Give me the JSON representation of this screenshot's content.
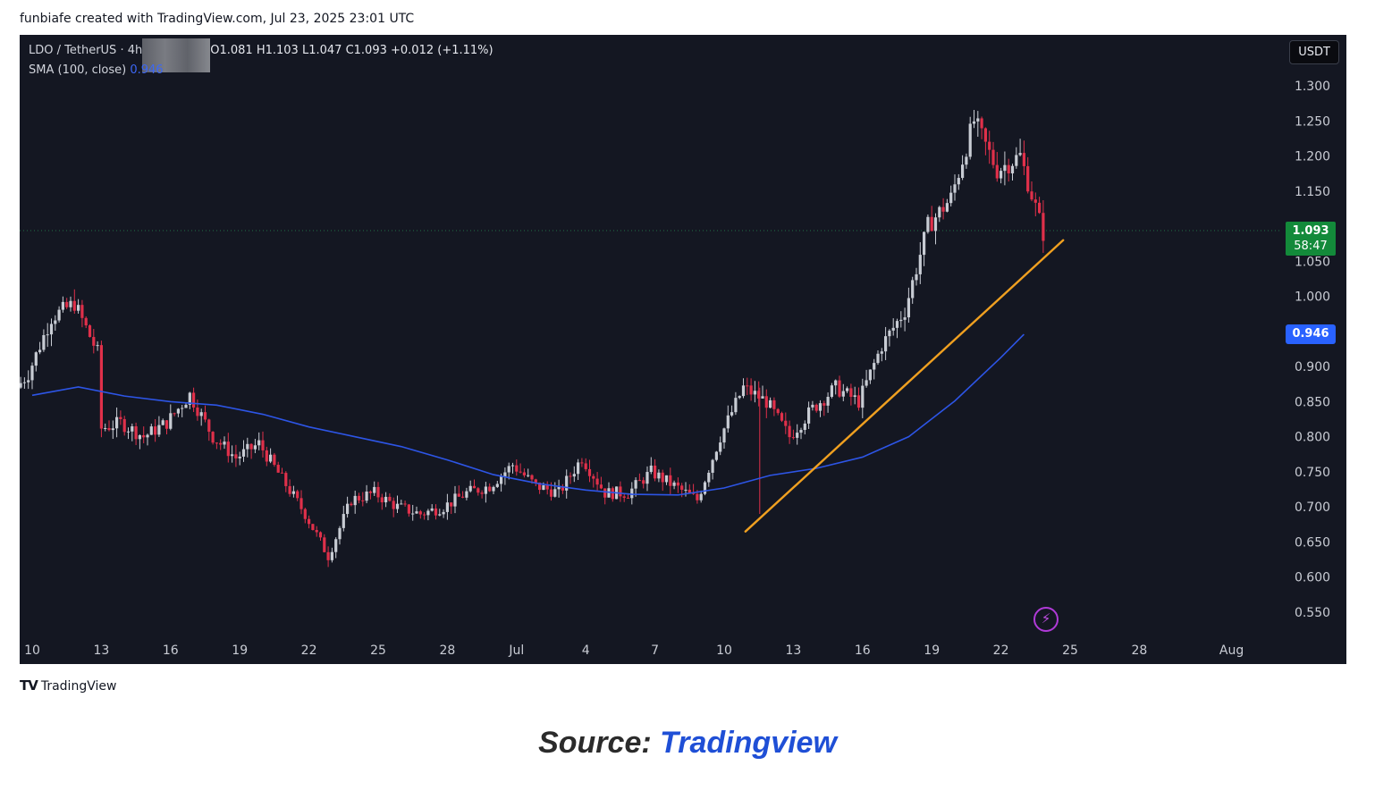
{
  "header": {
    "caption": "funbiafe created with TradingView.com, Jul 23, 2025 23:01 UTC"
  },
  "legend": {
    "symbol": "LDO / TetherUS · 4h",
    "open": "O1.081",
    "high": "H1.103",
    "low": "L1.047",
    "close": "C1.093",
    "change": "+0.012 (+1.11%)",
    "sma_label": "SMA (100, close)",
    "sma_value": "0.946"
  },
  "currency_button": "USDT",
  "price_tags": {
    "current": "1.093",
    "countdown": "58:47",
    "sma": "0.946"
  },
  "icons": {
    "alert": "lightning-bolt-icon",
    "logo": "tradingview-logo-icon"
  },
  "colors": {
    "background": "#141722",
    "up": "#c8ccd4",
    "down": "#e0304a",
    "sma": "#2d55e6",
    "trendline": "#f0a020",
    "current_price": "#138a3a"
  },
  "footer": {
    "logo_text": "TradingView",
    "source_prefix": "Source:",
    "source_link": "Tradingview"
  },
  "chart_data": {
    "type": "candlestick",
    "timeframe": "4h",
    "y_ticks": [
      "1.300",
      "1.250",
      "1.200",
      "1.150",
      "1.050",
      "1.000",
      "0.900",
      "0.850",
      "0.800",
      "0.750",
      "0.700",
      "0.650",
      "0.600",
      "0.550"
    ],
    "x_ticks": [
      {
        "label": "10",
        "date": "2025-06-10"
      },
      {
        "label": "13",
        "date": "2025-06-13"
      },
      {
        "label": "16",
        "date": "2025-06-16"
      },
      {
        "label": "19",
        "date": "2025-06-19"
      },
      {
        "label": "22",
        "date": "2025-06-22"
      },
      {
        "label": "25",
        "date": "2025-06-25"
      },
      {
        "label": "28",
        "date": "2025-06-28"
      },
      {
        "label": "Jul",
        "date": "2025-07-01"
      },
      {
        "label": "4",
        "date": "2025-07-04"
      },
      {
        "label": "7",
        "date": "2025-07-07"
      },
      {
        "label": "10",
        "date": "2025-07-10"
      },
      {
        "label": "13",
        "date": "2025-07-13"
      },
      {
        "label": "16",
        "date": "2025-07-16"
      },
      {
        "label": "19",
        "date": "2025-07-19"
      },
      {
        "label": "22",
        "date": "2025-07-22"
      },
      {
        "label": "25",
        "date": "2025-07-25"
      },
      {
        "label": "28",
        "date": "2025-07-28"
      },
      {
        "label": "Aug",
        "date": "2025-08-01"
      }
    ],
    "x_range": [
      "2025-06-10",
      "2025-08-01"
    ],
    "y_range": [
      0.52,
      1.35
    ],
    "last_price": 1.093,
    "price_anchors": [
      [
        "2025-06-09",
        0.85
      ],
      [
        "2025-06-10",
        0.89
      ],
      [
        "2025-06-11",
        0.97
      ],
      [
        "2025-06-12",
        0.99
      ],
      [
        "2025-06-13",
        0.92
      ],
      [
        "2025-06-13",
        0.81
      ],
      [
        "2025-06-14",
        0.82
      ],
      [
        "2025-06-15",
        0.8
      ],
      [
        "2025-06-16",
        0.82
      ],
      [
        "2025-06-17",
        0.86
      ],
      [
        "2025-06-18",
        0.8
      ],
      [
        "2025-06-19",
        0.77
      ],
      [
        "2025-06-20",
        0.79
      ],
      [
        "2025-06-21",
        0.74
      ],
      [
        "2025-06-22",
        0.69
      ],
      [
        "2025-06-23",
        0.63
      ],
      [
        "2025-06-24",
        0.71
      ],
      [
        "2025-06-25",
        0.72
      ],
      [
        "2025-06-26",
        0.7
      ],
      [
        "2025-06-27",
        0.69
      ],
      [
        "2025-06-28",
        0.7
      ],
      [
        "2025-06-29",
        0.72
      ],
      [
        "2025-06-30",
        0.73
      ],
      [
        "2025-07-01",
        0.76
      ],
      [
        "2025-07-02",
        0.73
      ],
      [
        "2025-07-03",
        0.72
      ],
      [
        "2025-07-04",
        0.77
      ],
      [
        "2025-07-05",
        0.72
      ],
      [
        "2025-07-06",
        0.72
      ],
      [
        "2025-07-07",
        0.75
      ],
      [
        "2025-07-08",
        0.73
      ],
      [
        "2025-07-09",
        0.71
      ],
      [
        "2025-07-10",
        0.8
      ],
      [
        "2025-07-11",
        0.87
      ],
      [
        "2025-07-12",
        0.85
      ],
      [
        "2025-07-13",
        0.8
      ],
      [
        "2025-07-14",
        0.84
      ],
      [
        "2025-07-15",
        0.87
      ],
      [
        "2025-07-16",
        0.85
      ],
      [
        "2025-07-17",
        0.93
      ],
      [
        "2025-07-18",
        0.98
      ],
      [
        "2025-07-19",
        1.1
      ],
      [
        "2025-07-20",
        1.14
      ],
      [
        "2025-07-21",
        1.25
      ],
      [
        "2025-07-22",
        1.18
      ],
      [
        "2025-07-23",
        1.2
      ],
      [
        "2025-07-24",
        1.09
      ]
    ],
    "sma": {
      "name": "SMA (100, close)",
      "points": [
        [
          "2025-06-10",
          0.859
        ],
        [
          "2025-06-12",
          0.871
        ],
        [
          "2025-06-14",
          0.858
        ],
        [
          "2025-06-16",
          0.85
        ],
        [
          "2025-06-18",
          0.845
        ],
        [
          "2025-06-20",
          0.832
        ],
        [
          "2025-06-22",
          0.814
        ],
        [
          "2025-06-24",
          0.8
        ],
        [
          "2025-06-26",
          0.786
        ],
        [
          "2025-06-28",
          0.767
        ],
        [
          "2025-06-30",
          0.746
        ],
        [
          "2025-07-02",
          0.733
        ],
        [
          "2025-07-04",
          0.724
        ],
        [
          "2025-07-06",
          0.718
        ],
        [
          "2025-07-08",
          0.717
        ],
        [
          "2025-07-10",
          0.727
        ],
        [
          "2025-07-12",
          0.745
        ],
        [
          "2025-07-14",
          0.755
        ],
        [
          "2025-07-16",
          0.771
        ],
        [
          "2025-07-18",
          0.8
        ],
        [
          "2025-07-20",
          0.851
        ],
        [
          "2025-07-22",
          0.913
        ],
        [
          "2025-07-23",
          0.946
        ]
      ]
    },
    "trendline": {
      "from": [
        "2025-07-11",
        0.665
      ],
      "to": [
        "2025-07-24",
        1.08
      ]
    }
  }
}
